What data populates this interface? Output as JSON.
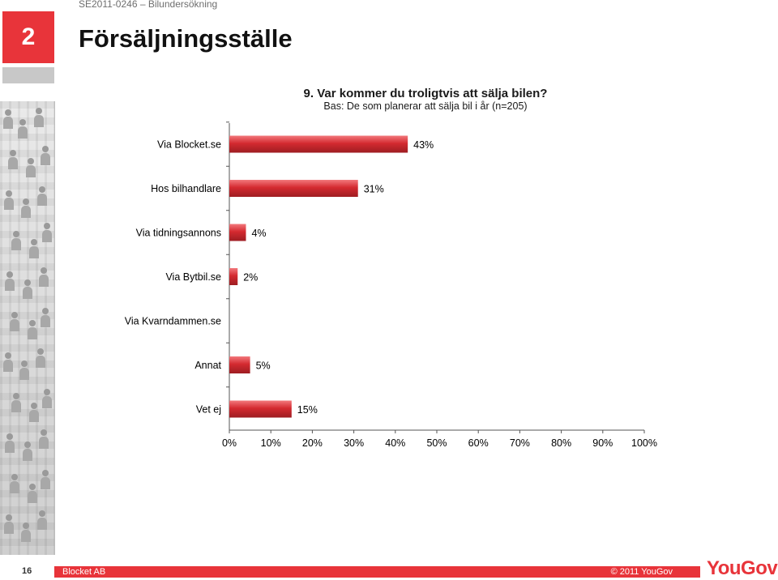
{
  "header": {
    "section_number": "2",
    "doc_ref": "SE2011-0246 – Bilundersökning",
    "title": "Försäljningsställe"
  },
  "chart_data": {
    "type": "bar",
    "orientation": "horizontal",
    "title": "9. Var kommer du troligtvis att sälja bilen?",
    "subtitle": "Bas: De som planerar att sälja bil i år (n=205)",
    "categories": [
      "Via Blocket.se",
      "Hos bilhandlare",
      "Via tidningsannons",
      "Via Bytbil.se",
      "Via Kvarndammen.se",
      "Annat",
      "Vet ej"
    ],
    "values": [
      43,
      31,
      4,
      2,
      0,
      5,
      15
    ],
    "data_labels": [
      "43%",
      "31%",
      "4%",
      "2%",
      "",
      "5%",
      "15%"
    ],
    "xlim": [
      0,
      100
    ],
    "x_ticks": [
      "0%",
      "10%",
      "20%",
      "30%",
      "40%",
      "50%",
      "60%",
      "70%",
      "80%",
      "90%",
      "100%"
    ],
    "bar_color": "#d42a30",
    "grid": false,
    "legend": "none"
  },
  "footer": {
    "page_number": "16",
    "left_text": "Blocket AB",
    "right_text": "© 2011 YouGov",
    "logo_text": "YouGov"
  },
  "colors": {
    "accent": "#e8343a",
    "bar": "#d42a30"
  }
}
